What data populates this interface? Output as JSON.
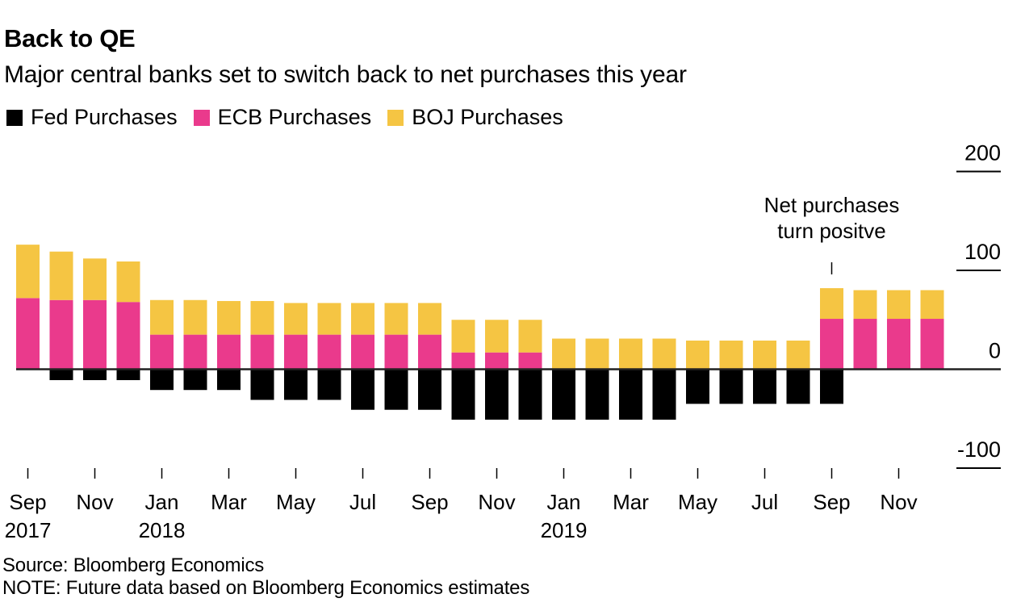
{
  "header": {
    "title": "Back to QE",
    "subtitle": "Major central banks set to switch back to net purchases this year"
  },
  "colors": {
    "fed": "#000000",
    "ecb": "#EA3A8C",
    "boj": "#F5C543",
    "axis": "#222222"
  },
  "chart_data": {
    "type": "bar",
    "stacked": true,
    "title": "Back to QE",
    "subtitle": "Major central banks set to switch back to net purchases this year",
    "xlabel": "",
    "ylabel": "",
    "ylim": [
      -100,
      200
    ],
    "yticks": [
      200,
      100,
      0,
      -100
    ],
    "ytick_labels": [
      "200",
      "100",
      "0",
      "-100"
    ],
    "y_axis_position": "right",
    "grid": false,
    "legend_position": "top-left",
    "categories": [
      "Sep 2017",
      "Oct 2017",
      "Nov 2017",
      "Dec 2017",
      "Jan 2018",
      "Feb 2018",
      "Mar 2018",
      "Apr 2018",
      "May 2018",
      "Jun 2018",
      "Jul 2018",
      "Aug 2018",
      "Sep 2018",
      "Oct 2018",
      "Nov 2018",
      "Dec 2018",
      "Jan 2019",
      "Feb 2019",
      "Mar 2019",
      "Apr 2019",
      "May 2019",
      "Jun 2019",
      "Jul 2019",
      "Aug 2019",
      "Sep 2019",
      "Oct 2019",
      "Nov 2019",
      "Dec 2019"
    ],
    "xtick_labels": [
      {
        "index": 0,
        "month": "Sep",
        "year": "2017"
      },
      {
        "index": 2,
        "month": "Nov",
        "year": ""
      },
      {
        "index": 4,
        "month": "Jan",
        "year": "2018"
      },
      {
        "index": 6,
        "month": "Mar",
        "year": ""
      },
      {
        "index": 8,
        "month": "May",
        "year": ""
      },
      {
        "index": 10,
        "month": "Jul",
        "year": ""
      },
      {
        "index": 12,
        "month": "Sep",
        "year": ""
      },
      {
        "index": 14,
        "month": "Nov",
        "year": ""
      },
      {
        "index": 16,
        "month": "Jan",
        "year": "2019"
      },
      {
        "index": 18,
        "month": "Mar",
        "year": ""
      },
      {
        "index": 20,
        "month": "May",
        "year": ""
      },
      {
        "index": 22,
        "month": "Jul",
        "year": ""
      },
      {
        "index": 24,
        "month": "Sep",
        "year": ""
      },
      {
        "index": 26,
        "month": "Nov",
        "year": ""
      }
    ],
    "series": [
      {
        "name": "Fed Purchases",
        "key": "fed",
        "values": [
          0,
          -11,
          -11,
          -11,
          -21,
          -21,
          -21,
          -31,
          -31,
          -31,
          -41,
          -41,
          -41,
          -51,
          -51,
          -51,
          -51,
          -51,
          -51,
          -51,
          -35,
          -35,
          -35,
          -35,
          -35,
          0,
          0,
          0
        ]
      },
      {
        "name": "ECB Purchases",
        "key": "ecb",
        "values": [
          72,
          70,
          70,
          68,
          35,
          35,
          35,
          35,
          35,
          35,
          35,
          35,
          35,
          17,
          17,
          17,
          0,
          0,
          0,
          0,
          0,
          0,
          0,
          0,
          51,
          51,
          51,
          51
        ]
      },
      {
        "name": "BOJ Purchases",
        "key": "boj",
        "values": [
          54,
          49,
          42,
          41,
          35,
          35,
          34,
          34,
          32,
          32,
          32,
          32,
          32,
          33,
          33,
          33,
          31,
          31,
          31,
          31,
          29,
          29,
          29,
          29,
          31,
          29,
          29,
          29
        ]
      }
    ],
    "annotations": [
      {
        "index": 24,
        "text_lines": [
          "Net purchases",
          "turn positve"
        ]
      }
    ]
  },
  "legend": [
    {
      "label": "Fed Purchases",
      "key": "fed"
    },
    {
      "label": "ECB Purchases",
      "key": "ecb"
    },
    {
      "label": "BOJ Purchases",
      "key": "boj"
    }
  ],
  "footer": {
    "source": "Source: Bloomberg Economics",
    "note": "NOTE: Future data based on Bloomberg Economics estimates"
  }
}
